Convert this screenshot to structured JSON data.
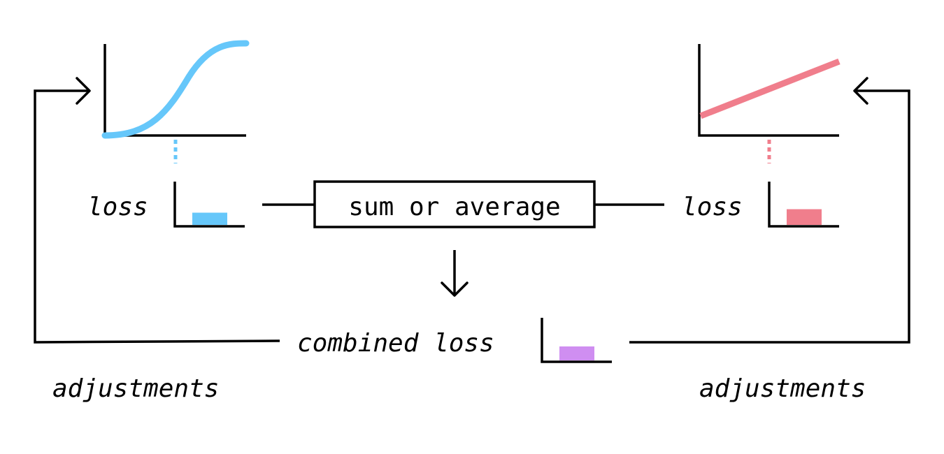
{
  "left_model": {
    "loss_label": "loss",
    "adjustments_label": "adjustments",
    "curve_color": "#66c7fa",
    "bar_color": "#66c7fa",
    "curve_shape": "sigmoid",
    "loss_level": 0.35
  },
  "right_model": {
    "loss_label": "loss",
    "adjustments_label": "adjustments",
    "curve_color": "#f07e8c",
    "bar_color": "#f07e8c",
    "curve_shape": "linear",
    "loss_level": 0.45
  },
  "combiner": {
    "label": "sum or average"
  },
  "combined": {
    "label": "combined loss",
    "bar_color": "#cf8ef1",
    "loss_level": 0.4
  },
  "colors": {
    "stroke": "#000000",
    "background": "#ffffff"
  }
}
